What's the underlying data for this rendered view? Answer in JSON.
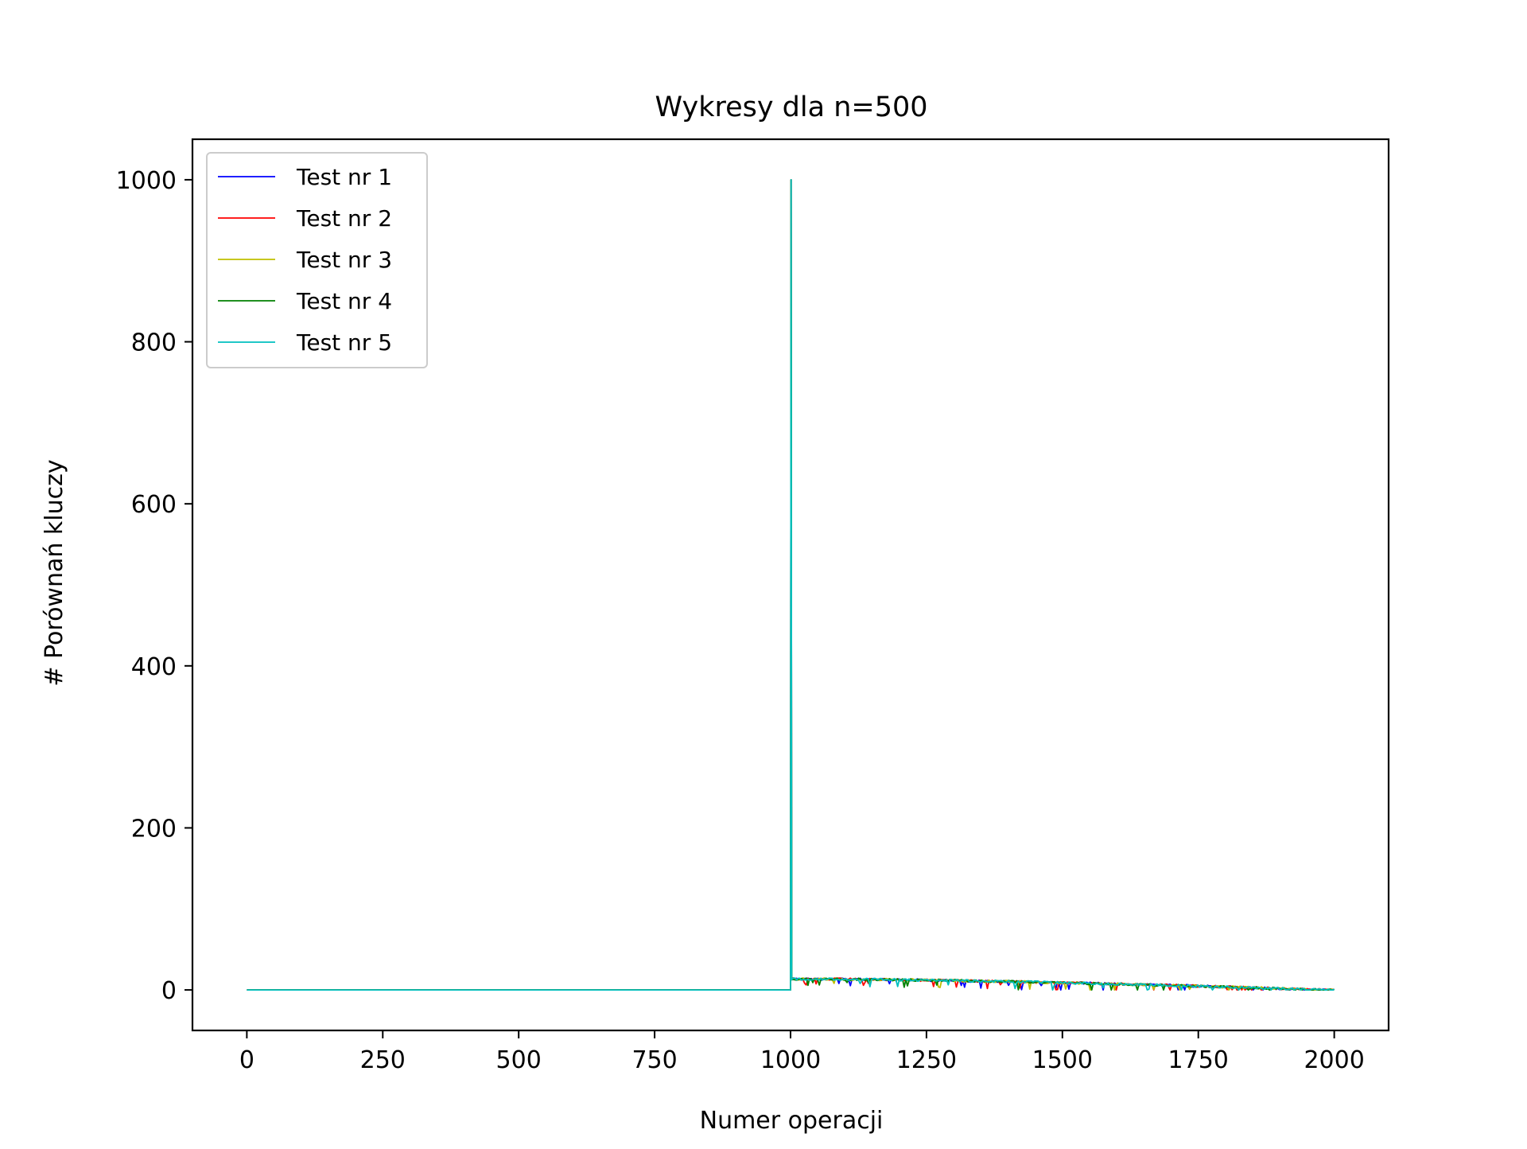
{
  "chart_data": {
    "type": "line",
    "title": "Wykresy dla n=500",
    "xlabel": "Numer operacji",
    "ylabel": "# Porównań kluczy",
    "xlim": [
      -100,
      2100
    ],
    "ylim": [
      -50,
      1050
    ],
    "xticks": [
      0,
      250,
      500,
      750,
      1000,
      1250,
      1500,
      1750,
      2000
    ],
    "yticks": [
      0,
      200,
      400,
      600,
      800,
      1000
    ],
    "grid": false,
    "legend_position": "upper-left",
    "series": [
      {
        "name": "Test nr 1",
        "color": "#0000ff"
      },
      {
        "name": "Test nr 2",
        "color": "#ff0000"
      },
      {
        "name": "Test nr 3",
        "color": "#bfbf00"
      },
      {
        "name": "Test nr 4",
        "color": "#008000"
      },
      {
        "name": "Test nr 5",
        "color": "#00bfbf"
      }
    ],
    "segments": [
      {
        "phase": "insert",
        "x": [
          0,
          1000
        ],
        "y": [
          0,
          0
        ]
      },
      {
        "phase": "spike",
        "x": 1001,
        "y": 1000
      },
      {
        "phase": "delete",
        "x": [
          1002,
          2000
        ],
        "y_start": 15,
        "y_end": 1
      }
    ]
  }
}
